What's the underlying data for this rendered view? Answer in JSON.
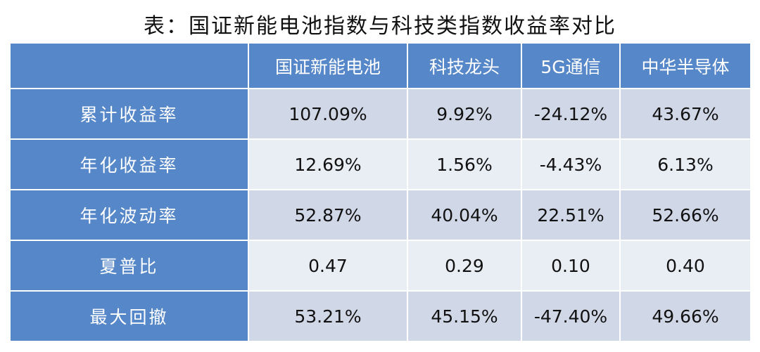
{
  "title": "表：国证新能电池指数与科技类指数收益率对比",
  "table": {
    "header": [
      "国证新能电池",
      "科技龙头",
      "5G通信",
      "中华半导体"
    ],
    "rows": [
      [
        "累计收益率",
        "107.09%",
        "9.92%",
        "-24.12%",
        "43.67%"
      ],
      [
        "年化收益率",
        "12.69%",
        "1.56%",
        "-4.43%",
        "6.13%"
      ],
      [
        "年化波动率",
        "52.87%",
        "40.04%",
        "22.51%",
        "52.66%"
      ],
      [
        "夏普比",
        "0.47",
        "0.29",
        "0.10",
        "0.40"
      ],
      [
        "最大回撤",
        "53.21%",
        "45.15%",
        "-47.40%",
        "49.66%"
      ]
    ]
  }
}
